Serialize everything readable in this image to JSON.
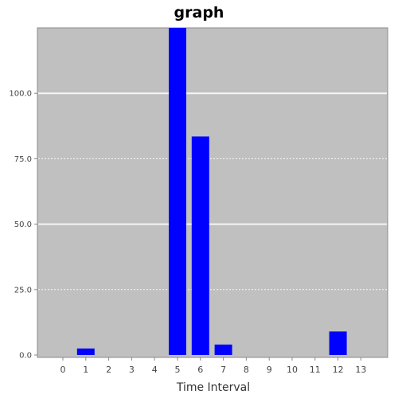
{
  "chart_data": {
    "type": "bar",
    "title": "graph",
    "xlabel": "Time Interval",
    "ylabel": "",
    "categories": [
      "0",
      "1",
      "2",
      "3",
      "4",
      "5",
      "6",
      "7",
      "8",
      "9",
      "10",
      "11",
      "12",
      "13"
    ],
    "values": [
      0,
      2.5,
      0,
      0,
      0,
      125,
      83.5,
      4,
      0,
      0,
      0,
      0,
      9,
      0
    ],
    "y_ticks": [
      "0.0",
      "25.0",
      "50.0",
      "75.0",
      "100.0"
    ],
    "ylim": [
      0,
      125
    ],
    "grid": true,
    "legend": "none",
    "colors": {
      "bar": "#0000ff",
      "plot_background": "#c0c0c0",
      "gridline": "#ffffff"
    }
  }
}
